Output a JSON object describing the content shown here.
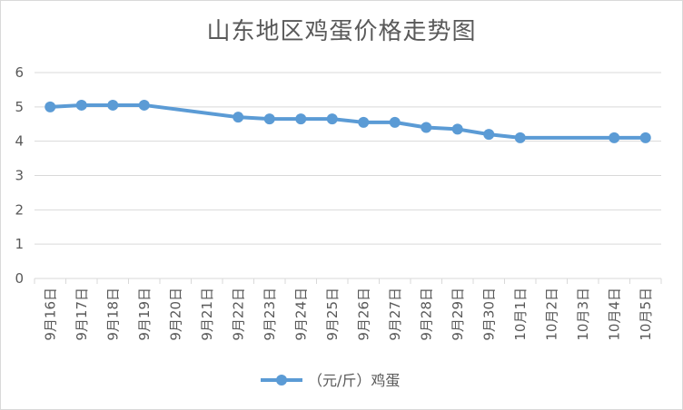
{
  "chart_data": {
    "type": "line",
    "title": "山东地区鸡蛋价格走势图",
    "categories": [
      "9月16日",
      "9月17日",
      "9月18日",
      "9月19日",
      "9月20日",
      "9月21日",
      "9月22日",
      "9月23日",
      "9月24日",
      "9月25日",
      "9月26日",
      "9月27日",
      "9月28日",
      "9月29日",
      "9月30日",
      "10月1日",
      "10月2日",
      "10月3日",
      "10月4日",
      "10月5日"
    ],
    "series": [
      {
        "name": "（元/斤）鸡蛋",
        "values": [
          5.0,
          5.05,
          5.05,
          5.05,
          null,
          null,
          4.7,
          4.65,
          4.65,
          4.65,
          4.55,
          4.55,
          4.4,
          4.35,
          4.2,
          4.1,
          null,
          null,
          4.1,
          4.1
        ],
        "color": "#5b9bd5"
      }
    ],
    "ylim": [
      0,
      6
    ],
    "yticks": [
      "0",
      "1",
      "2",
      "3",
      "4",
      "5",
      "6"
    ],
    "grid": true,
    "legend": "bottom"
  }
}
